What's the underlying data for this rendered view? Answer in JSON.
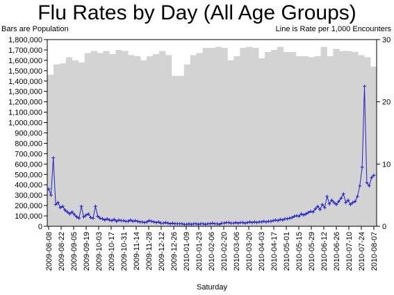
{
  "chart_data": {
    "type": "bar+line",
    "title": "Flu Rates by Day (All Age Groups)",
    "subtitle_left": "Bars are Population",
    "subtitle_right": "Line is Rate per 1,000 Encounters",
    "xlabel": "Saturday",
    "y_left": {
      "min": 0,
      "max": 1800000,
      "ticks": [
        "0",
        "100,000",
        "200,000",
        "300,000",
        "400,000",
        "500,000",
        "600,000",
        "700,000",
        "800,000",
        "900,000",
        "1,000,000",
        "1,100,000",
        "1,200,000",
        "1,300,000",
        "1,400,000",
        "1,500,000",
        "1,600,000",
        "1,700,000",
        "1,800,000"
      ]
    },
    "y_right": {
      "min": 0,
      "max": 30,
      "ticks": [
        "0",
        "10",
        "20",
        "30"
      ]
    },
    "x_tick_labels": [
      "2009-08-08",
      "2009-08-22",
      "2009-09-05",
      "2009-09-19",
      "2009-10-03",
      "2009-10-17",
      "2009-10-31",
      "2009-11-14",
      "2009-11-28",
      "2009-12-12",
      "2009-12-26",
      "2010-01-09",
      "2010-01-23",
      "2010-02-06",
      "2010-02-20",
      "2010-03-06",
      "2010-03-20",
      "2010-04-03",
      "2010-04-17",
      "2010-05-01",
      "2010-05-15",
      "2010-05-29",
      "2010-06-12",
      "2010-06-26",
      "2010-07-10",
      "2010-07-24",
      "2010-08-07"
    ],
    "bar_series": {
      "name": "Population",
      "color": "#d3d3d3",
      "values": [
        1460000,
        1560000,
        1570000,
        1630000,
        1600000,
        1580000,
        1670000,
        1690000,
        1670000,
        1690000,
        1660000,
        1700000,
        1690000,
        1650000,
        1640000,
        1600000,
        1640000,
        1660000,
        1690000,
        1650000,
        1450000,
        1450000,
        1560000,
        1650000,
        1670000,
        1720000,
        1720000,
        1730000,
        1720000,
        1600000,
        1640000,
        1720000,
        1730000,
        1720000,
        1620000,
        1680000,
        1700000,
        1730000,
        1680000,
        1680000,
        1640000,
        1640000,
        1630000,
        1640000,
        1730000,
        1640000,
        1710000,
        1690000,
        1690000,
        1680000,
        1650000,
        1630000,
        1540000
      ]
    },
    "line_series": {
      "name": "Rate",
      "color": "#2020c8",
      "values": [
        6.0,
        5.0,
        11.0,
        3.5,
        3.8,
        3.0,
        3.2,
        2.6,
        2.3,
        2.0,
        2.3,
        1.9,
        1.5,
        1.3,
        3.2,
        1.5,
        1.8,
        2.0,
        1.4,
        1.3,
        3.2,
        1.6,
        1.3,
        1.2,
        1.0,
        1.2,
        1.0,
        0.9,
        1.1,
        0.8,
        1.0,
        0.9,
        0.9,
        0.8,
        0.8,
        1.0,
        0.8,
        0.9,
        0.8,
        0.7,
        0.7,
        0.6,
        0.7,
        0.9,
        0.8,
        0.7,
        0.6,
        0.7,
        0.5,
        0.5,
        0.6,
        0.5,
        0.4,
        0.5,
        0.4,
        0.4,
        0.4,
        0.4,
        0.3,
        0.3,
        0.4,
        0.3,
        0.4,
        0.4,
        0.3,
        0.4,
        0.4,
        0.3,
        0.4,
        0.4,
        0.5,
        0.4,
        0.4,
        0.3,
        0.5,
        0.5,
        0.6,
        0.6,
        0.5,
        0.5,
        0.6,
        0.5,
        0.6,
        0.6,
        0.5,
        0.6,
        0.7,
        0.6,
        0.7,
        0.6,
        0.7,
        0.7,
        0.8,
        0.7,
        0.8,
        0.8,
        0.9,
        1.0,
        0.9,
        1.1,
        1.0,
        1.2,
        1.2,
        1.3,
        1.4,
        1.6,
        1.7,
        1.6,
        2.0,
        1.8,
        2.0,
        2.2,
        2.4,
        2.3,
        2.8,
        3.2,
        2.7,
        3.5,
        3.0,
        4.8,
        3.6,
        4.2,
        3.8,
        3.5,
        4.0,
        4.5,
        5.2,
        3.8,
        4.2,
        3.5,
        3.8,
        4.0,
        4.8,
        6.5,
        9.5,
        22.5,
        7.0,
        6.5,
        7.8,
        8.2
      ]
    }
  }
}
